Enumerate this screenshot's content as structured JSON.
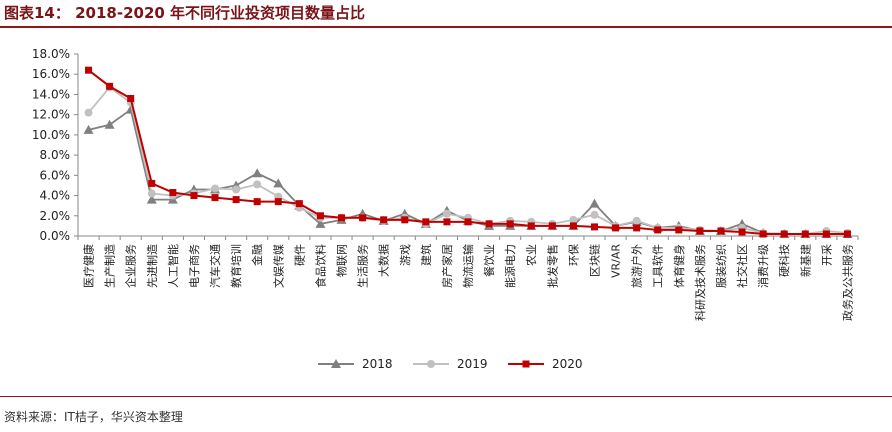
{
  "header": {
    "title": "图表14： 2018-2020 年不同行业投资项目数量占比"
  },
  "footer": {
    "source": "资料来源：IT桔子，华兴资本整理"
  },
  "colors": {
    "title": "#7a1418",
    "rule": "#8b1a1a",
    "series_2018": "#808080",
    "series_2019": "#c0c0c0",
    "series_2020": "#c00000"
  },
  "chart_data": {
    "type": "line",
    "title": "",
    "xlabel": "",
    "ylabel": "",
    "ylim": [
      0,
      18
    ],
    "yticks": [
      "0.0%",
      "2.0%",
      "4.0%",
      "6.0%",
      "8.0%",
      "10.0%",
      "12.0%",
      "14.0%",
      "16.0%",
      "18.0%"
    ],
    "grid": false,
    "legend": "bottom",
    "categories": [
      "医疗健康",
      "生产制造",
      "企业服务",
      "先进制造",
      "人工智能",
      "电子商务",
      "汽车交通",
      "教育培训",
      "金融",
      "文娱传媒",
      "硬件",
      "食品饮料",
      "物联网",
      "生活服务",
      "大数据",
      "游戏",
      "建筑",
      "房产家居",
      "物流运输",
      "餐饮业",
      "能源电力",
      "农业",
      "批发零售",
      "环保",
      "区块链",
      "VR/AR",
      "旅游户外",
      "工具软件",
      "体育健身",
      "科研及技术服务",
      "服装纺织",
      "社交社区",
      "消费升级",
      "硬科技",
      "新基建",
      "开采",
      "政务及公共服务"
    ],
    "series": [
      {
        "name": "2018",
        "marker": "triangle",
        "values": [
          10.5,
          11.0,
          12.5,
          3.6,
          3.6,
          4.6,
          4.6,
          5.0,
          6.2,
          5.2,
          3.0,
          1.2,
          1.6,
          2.2,
          1.5,
          2.2,
          1.2,
          2.5,
          1.5,
          1.0,
          1.0,
          1.0,
          1.0,
          1.0,
          3.2,
          1.0,
          1.4,
          0.8,
          1.0,
          0.5,
          0.5,
          1.2,
          0.3,
          0.2,
          0.2,
          0.2,
          0.2
        ]
      },
      {
        "name": "2019",
        "marker": "circle",
        "values": [
          12.2,
          14.7,
          13.2,
          4.2,
          4.0,
          4.2,
          4.7,
          4.6,
          5.1,
          3.9,
          2.8,
          1.8,
          1.8,
          1.8,
          1.5,
          1.8,
          1.2,
          2.2,
          1.8,
          1.2,
          1.5,
          1.4,
          1.2,
          1.6,
          2.1,
          1.0,
          1.5,
          0.8,
          0.8,
          0.6,
          0.5,
          0.8,
          0.3,
          0.2,
          0.2,
          0.5,
          0.3
        ]
      },
      {
        "name": "2020",
        "marker": "square",
        "values": [
          16.4,
          14.8,
          13.6,
          5.2,
          4.3,
          4.0,
          3.8,
          3.6,
          3.4,
          3.4,
          3.2,
          2.0,
          1.8,
          1.8,
          1.6,
          1.6,
          1.4,
          1.4,
          1.4,
          1.2,
          1.2,
          1.0,
          1.0,
          1.0,
          0.9,
          0.8,
          0.8,
          0.6,
          0.6,
          0.5,
          0.5,
          0.4,
          0.2,
          0.2,
          0.2,
          0.2,
          0.2
        ]
      }
    ]
  }
}
